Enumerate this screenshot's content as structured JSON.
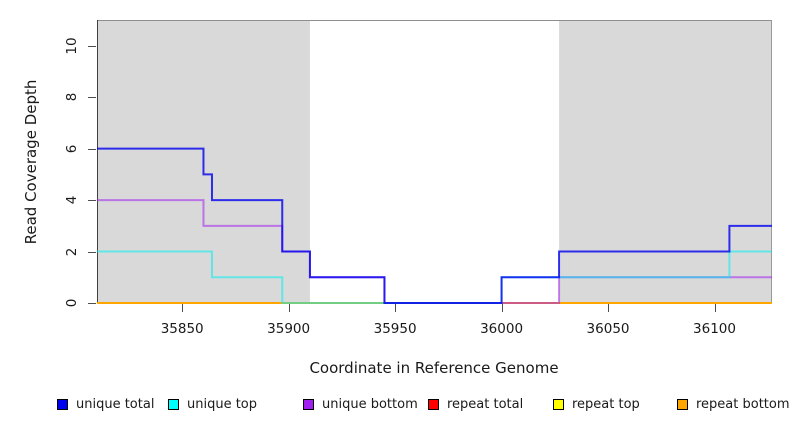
{
  "chart_data": {
    "type": "line",
    "subtype": "step",
    "title": "",
    "xlabel": "Coordinate in Reference Genome",
    "ylabel": "Read Coverage Depth",
    "xlim": [
      35810,
      36127
    ],
    "ylim": [
      0,
      11
    ],
    "xticks": [
      35850,
      35900,
      35950,
      36000,
      36050,
      36100
    ],
    "yticks": [
      0,
      2,
      4,
      6,
      8,
      10
    ],
    "grid": false,
    "legend_position": "bottom",
    "shaded_regions": {
      "color": "#D9D9D9",
      "ranges": [
        [
          35810,
          35910
        ],
        [
          36027,
          36127
        ]
      ]
    },
    "series": [
      {
        "name": "repeat total",
        "color": "#FF0000",
        "opacity": 0.9,
        "end": 36127,
        "steps": [
          [
            35810,
            0
          ]
        ]
      },
      {
        "name": "repeat top",
        "color": "#FFFF00",
        "opacity": 0.9,
        "end": 36127,
        "steps": [
          [
            35810,
            0
          ]
        ]
      },
      {
        "name": "repeat bottom",
        "color": "#FFA500",
        "opacity": 1.0,
        "end": 36127,
        "steps": [
          [
            35810,
            0
          ]
        ]
      },
      {
        "name": "unique bottom",
        "color": "#A020F0",
        "opacity": 0.55,
        "end": 36127,
        "steps": [
          [
            35810,
            4
          ],
          [
            35860,
            3
          ],
          [
            35897,
            2
          ],
          [
            35910,
            1
          ],
          [
            35945,
            0
          ],
          [
            36027,
            1
          ]
        ]
      },
      {
        "name": "unique top",
        "color": "#00EEEE",
        "opacity": 0.55,
        "end": 36127,
        "steps": [
          [
            35810,
            2
          ],
          [
            35864,
            1
          ],
          [
            35897,
            0
          ],
          [
            36000,
            1
          ],
          [
            36107,
            2
          ]
        ]
      },
      {
        "name": "unique total",
        "color": "#0000EE",
        "opacity": 0.8,
        "end": 36127,
        "steps": [
          [
            35810,
            6
          ],
          [
            35860,
            5
          ],
          [
            35864,
            4
          ],
          [
            35897,
            2
          ],
          [
            35910,
            1
          ],
          [
            35945,
            0
          ],
          [
            36000,
            1
          ],
          [
            36027,
            2
          ],
          [
            36107,
            3
          ]
        ]
      }
    ],
    "legend": [
      {
        "label": "unique total",
        "color": "#0000F0"
      },
      {
        "label": "unique top",
        "color": "#00FFFF"
      },
      {
        "label": "unique bottom",
        "color": "#A020F0"
      },
      {
        "label": "repeat total",
        "color": "#FF0000"
      },
      {
        "label": "repeat top",
        "color": "#FFFF00"
      },
      {
        "label": "repeat bottom",
        "color": "#FFA500"
      }
    ]
  }
}
